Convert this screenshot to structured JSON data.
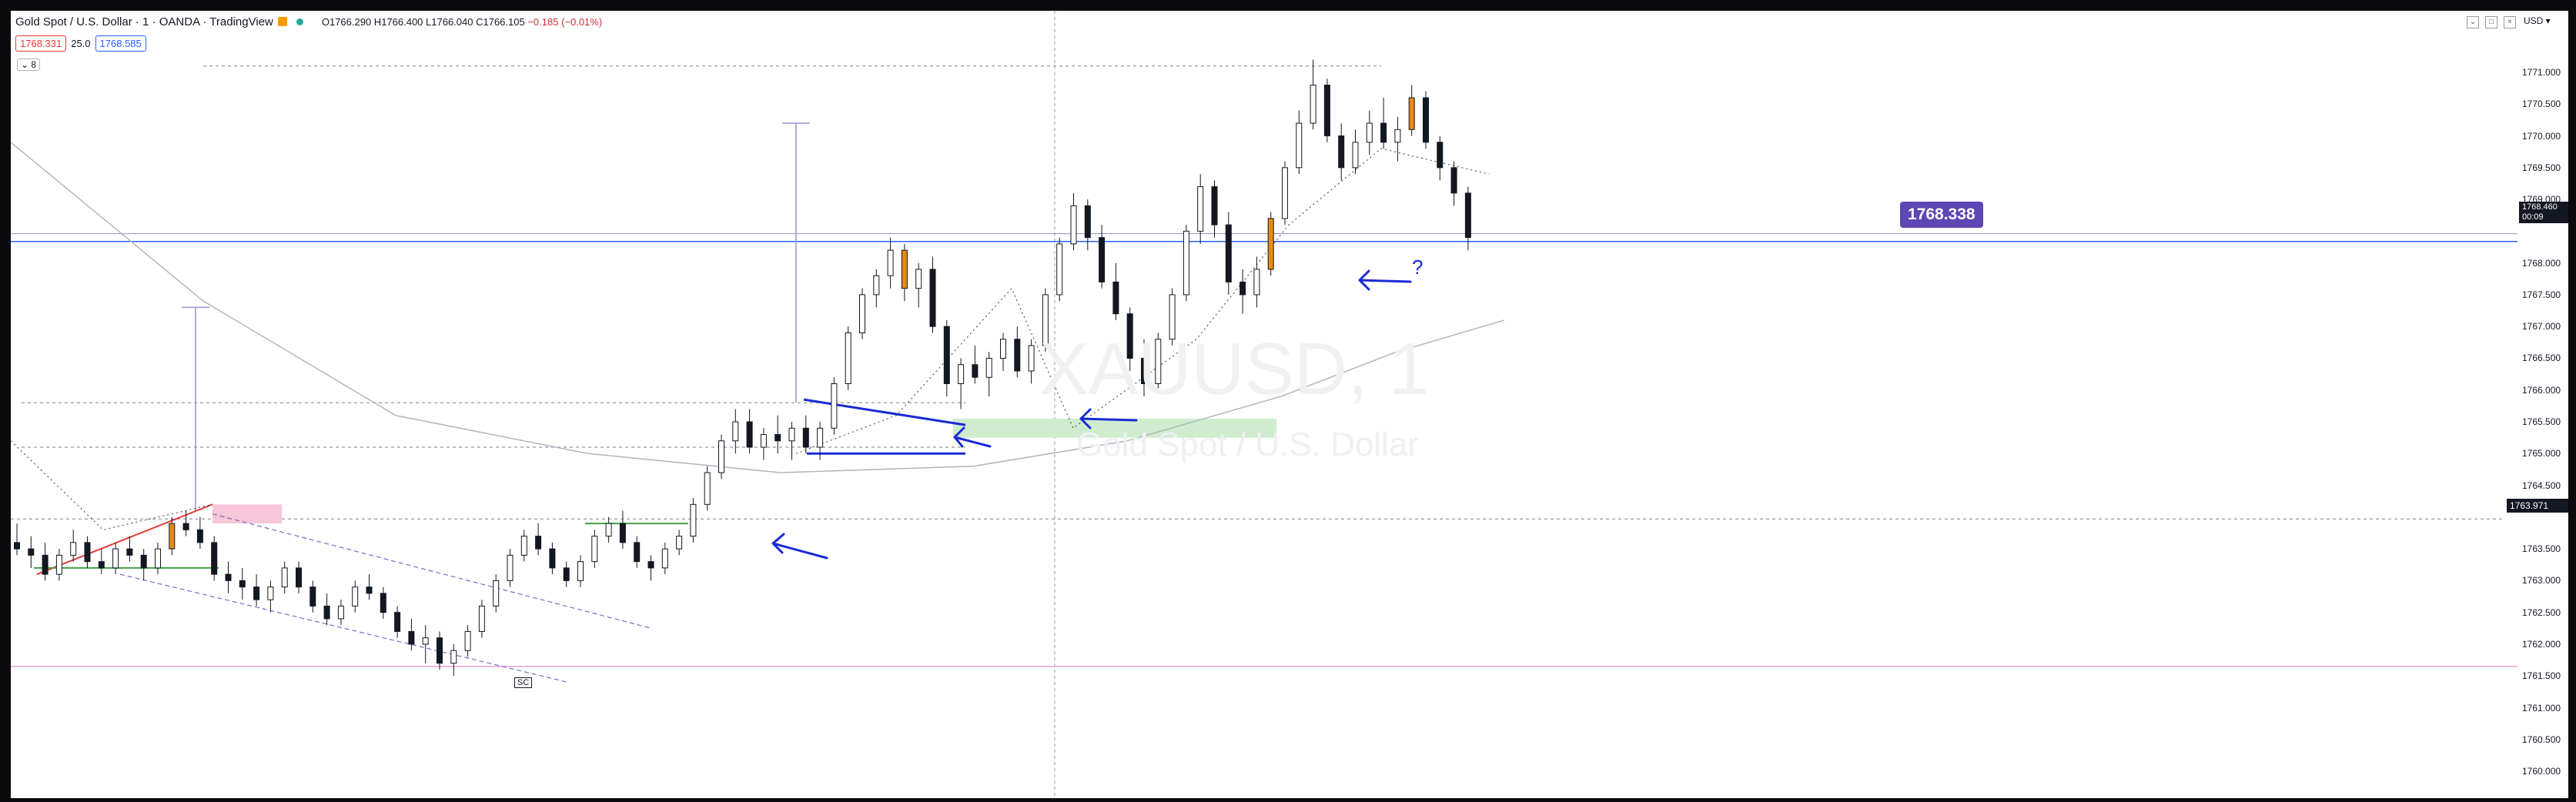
{
  "header": {
    "symbol_line": "Gold Spot / U.S. Dollar · 1 · OANDA · TradingView",
    "ohlc": "O1766.290 H1766.400 L1766.040 C1766.105",
    "change": "−0.185 (−0.01%)"
  },
  "quotes": {
    "bid": "1768.331",
    "spread": "25.0",
    "ask": "1768.585"
  },
  "indicator_toggle": "⌄ 8",
  "axis": {
    "unit": "USD ▾",
    "ticks": [
      "1771.000",
      "1770.500",
      "1770.000",
      "1769.500",
      "1769.000",
      "1768.000",
      "1767.500",
      "1767.000",
      "1766.500",
      "1766.000",
      "1765.500",
      "1765.000",
      "1764.500",
      "1763.500",
      "1763.000",
      "1762.500",
      "1762.000",
      "1761.500",
      "1761.000",
      "1760.500",
      "1760.000"
    ],
    "current_price": "1768.460",
    "countdown": "00:09",
    "highlight_price": "1763.971"
  },
  "annotations": {
    "price_note": "1768.338",
    "question_mark": "?",
    "sc_label": "SC"
  },
  "watermark": {
    "symbol": "XAUUSD, 1",
    "description": "Gold Spot / U.S. Dollar"
  },
  "colors": {
    "up": "#ffffff",
    "down": "#131722",
    "highlight": "#e88a14",
    "accent": "#1a2bd6",
    "purple": "#5e46b4",
    "pink": "#e8a0d8",
    "green_zone": "#cfeccf"
  },
  "chart_data": {
    "type": "candlestick",
    "ylim": [
      1759.8,
      1771.6
    ],
    "candles": [
      [
        1763.6,
        1763.9,
        1763.4,
        1763.5
      ],
      [
        1763.5,
        1763.7,
        1763.2,
        1763.4
      ],
      [
        1763.4,
        1763.6,
        1763.0,
        1763.1
      ],
      [
        1763.1,
        1763.5,
        1763.0,
        1763.4
      ],
      [
        1763.4,
        1763.8,
        1763.3,
        1763.6
      ],
      [
        1763.6,
        1763.7,
        1763.2,
        1763.3
      ],
      [
        1763.3,
        1763.5,
        1763.1,
        1763.2
      ],
      [
        1763.2,
        1763.6,
        1763.1,
        1763.5
      ],
      [
        1763.5,
        1763.7,
        1763.3,
        1763.4
      ],
      [
        1763.4,
        1763.5,
        1763.0,
        1763.2
      ],
      [
        1763.2,
        1763.6,
        1763.1,
        1763.5
      ],
      [
        1763.5,
        1764.0,
        1763.4,
        1763.9
      ],
      [
        1763.9,
        1764.1,
        1763.7,
        1763.8
      ],
      [
        1763.8,
        1764.0,
        1763.5,
        1763.6
      ],
      [
        1763.6,
        1763.7,
        1763.0,
        1763.1
      ],
      [
        1763.1,
        1763.3,
        1762.8,
        1763.0
      ],
      [
        1763.0,
        1763.2,
        1762.7,
        1762.9
      ],
      [
        1762.9,
        1763.1,
        1762.6,
        1762.7
      ],
      [
        1762.7,
        1763.0,
        1762.5,
        1762.9
      ],
      [
        1762.9,
        1763.3,
        1762.8,
        1763.2
      ],
      [
        1763.2,
        1763.3,
        1762.8,
        1762.9
      ],
      [
        1762.9,
        1763.0,
        1762.5,
        1762.6
      ],
      [
        1762.6,
        1762.8,
        1762.3,
        1762.4
      ],
      [
        1762.4,
        1762.7,
        1762.3,
        1762.6
      ],
      [
        1762.6,
        1763.0,
        1762.5,
        1762.9
      ],
      [
        1762.9,
        1763.1,
        1762.7,
        1762.8
      ],
      [
        1762.8,
        1762.9,
        1762.4,
        1762.5
      ],
      [
        1762.5,
        1762.6,
        1762.1,
        1762.2
      ],
      [
        1762.2,
        1762.4,
        1761.9,
        1762.0
      ],
      [
        1762.0,
        1762.3,
        1761.7,
        1762.1
      ],
      [
        1762.1,
        1762.2,
        1761.6,
        1761.7
      ],
      [
        1761.7,
        1762.0,
        1761.5,
        1761.9
      ],
      [
        1761.9,
        1762.3,
        1761.8,
        1762.2
      ],
      [
        1762.2,
        1762.7,
        1762.1,
        1762.6
      ],
      [
        1762.6,
        1763.1,
        1762.5,
        1763.0
      ],
      [
        1763.0,
        1763.5,
        1762.9,
        1763.4
      ],
      [
        1763.4,
        1763.8,
        1763.3,
        1763.7
      ],
      [
        1763.7,
        1763.9,
        1763.4,
        1763.5
      ],
      [
        1763.5,
        1763.6,
        1763.1,
        1763.2
      ],
      [
        1763.2,
        1763.3,
        1762.9,
        1763.0
      ],
      [
        1763.0,
        1763.4,
        1762.9,
        1763.3
      ],
      [
        1763.3,
        1763.8,
        1763.2,
        1763.7
      ],
      [
        1763.7,
        1764.0,
        1763.6,
        1763.9
      ],
      [
        1763.9,
        1764.1,
        1763.5,
        1763.6
      ],
      [
        1763.6,
        1763.7,
        1763.2,
        1763.3
      ],
      [
        1763.3,
        1763.4,
        1763.0,
        1763.2
      ],
      [
        1763.2,
        1763.6,
        1763.1,
        1763.5
      ],
      [
        1763.5,
        1763.8,
        1763.4,
        1763.7
      ],
      [
        1763.7,
        1764.3,
        1763.6,
        1764.2
      ],
      [
        1764.2,
        1764.8,
        1764.1,
        1764.7
      ],
      [
        1764.7,
        1765.3,
        1764.6,
        1765.2
      ],
      [
        1765.2,
        1765.7,
        1765.0,
        1765.5
      ],
      [
        1765.5,
        1765.7,
        1765.0,
        1765.1
      ],
      [
        1765.1,
        1765.4,
        1764.9,
        1765.3
      ],
      [
        1765.3,
        1765.6,
        1765.0,
        1765.2
      ],
      [
        1765.2,
        1765.5,
        1764.9,
        1765.4
      ],
      [
        1765.4,
        1765.6,
        1765.0,
        1765.1
      ],
      [
        1765.1,
        1765.5,
        1764.9,
        1765.4
      ],
      [
        1765.4,
        1766.2,
        1765.3,
        1766.1
      ],
      [
        1766.1,
        1767.0,
        1766.0,
        1766.9
      ],
      [
        1766.9,
        1767.6,
        1766.8,
        1767.5
      ],
      [
        1767.5,
        1767.9,
        1767.3,
        1767.8
      ],
      [
        1767.8,
        1768.4,
        1767.6,
        1768.2
      ],
      [
        1768.2,
        1768.3,
        1767.4,
        1767.6
      ],
      [
        1767.6,
        1768.0,
        1767.3,
        1767.9
      ],
      [
        1767.9,
        1768.1,
        1766.9,
        1767.0
      ],
      [
        1767.0,
        1767.1,
        1765.9,
        1766.1
      ],
      [
        1766.1,
        1766.5,
        1765.7,
        1766.4
      ],
      [
        1766.4,
        1766.7,
        1766.1,
        1766.2
      ],
      [
        1766.2,
        1766.6,
        1765.9,
        1766.5
      ],
      [
        1766.5,
        1766.9,
        1766.3,
        1766.8
      ],
      [
        1766.8,
        1767.0,
        1766.2,
        1766.3
      ],
      [
        1766.3,
        1766.8,
        1766.1,
        1766.7
      ],
      [
        1766.7,
        1767.6,
        1766.6,
        1767.5
      ],
      [
        1767.5,
        1768.4,
        1767.4,
        1768.3
      ],
      [
        1768.3,
        1769.1,
        1768.2,
        1768.9
      ],
      [
        1768.9,
        1769.0,
        1768.2,
        1768.4
      ],
      [
        1768.4,
        1768.6,
        1767.6,
        1767.7
      ],
      [
        1767.7,
        1768.0,
        1767.1,
        1767.2
      ],
      [
        1767.2,
        1767.3,
        1766.3,
        1766.5
      ],
      [
        1766.5,
        1766.8,
        1765.9,
        1766.1
      ],
      [
        1766.1,
        1766.9,
        1766.0,
        1766.8
      ],
      [
        1766.8,
        1767.6,
        1766.7,
        1767.5
      ],
      [
        1767.5,
        1768.6,
        1767.4,
        1768.5
      ],
      [
        1768.5,
        1769.4,
        1768.3,
        1769.2
      ],
      [
        1769.2,
        1769.3,
        1768.4,
        1768.6
      ],
      [
        1768.6,
        1768.8,
        1767.5,
        1767.7
      ],
      [
        1767.7,
        1767.9,
        1767.2,
        1767.5
      ],
      [
        1767.5,
        1768.1,
        1767.3,
        1767.9
      ],
      [
        1767.9,
        1768.8,
        1767.8,
        1768.7
      ],
      [
        1768.7,
        1769.6,
        1768.6,
        1769.5
      ],
      [
        1769.5,
        1770.4,
        1769.4,
        1770.2
      ],
      [
        1770.2,
        1771.2,
        1770.1,
        1770.8
      ],
      [
        1770.8,
        1770.9,
        1769.9,
        1770.0
      ],
      [
        1770.0,
        1770.2,
        1769.3,
        1769.5
      ],
      [
        1769.5,
        1770.1,
        1769.4,
        1769.9
      ],
      [
        1769.9,
        1770.4,
        1769.7,
        1770.2
      ],
      [
        1770.2,
        1770.6,
        1769.8,
        1769.9
      ],
      [
        1769.9,
        1770.3,
        1769.6,
        1770.1
      ],
      [
        1770.1,
        1770.8,
        1770.0,
        1770.6
      ],
      [
        1770.6,
        1770.7,
        1769.8,
        1769.9
      ],
      [
        1769.9,
        1770.0,
        1769.3,
        1769.5
      ],
      [
        1769.5,
        1769.6,
        1768.9,
        1769.1
      ],
      [
        1769.1,
        1769.2,
        1768.2,
        1768.4
      ]
    ],
    "highlighted_candles": [
      11,
      63,
      89,
      99
    ],
    "moving_average": [
      1769.9,
      1767.4,
      1765.6,
      1765.0,
      1764.7,
      1764.8,
      1765.2,
      1765.9,
      1766.6,
      1767.1
    ],
    "horizontal_lines": [
      1768.338,
      1768.46,
      1763.971,
      1761.65
    ],
    "dashed_levels": [
      1771.1,
      1765.8,
      1765.1
    ]
  }
}
